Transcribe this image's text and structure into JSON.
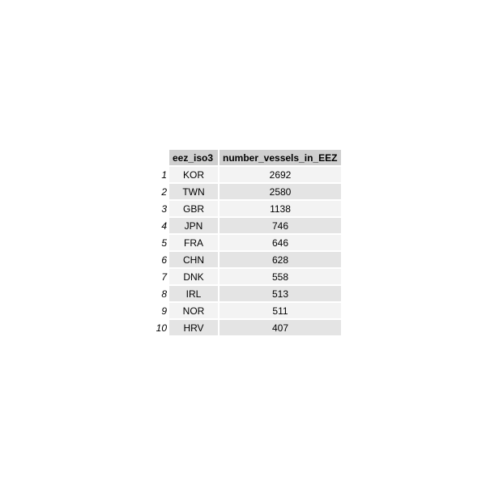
{
  "table": {
    "columns": [
      "eez_iso3",
      "number_vessels_in_EEZ"
    ],
    "rows": [
      {
        "row_number": "1",
        "eez_iso3": "KOR",
        "number_vessels_in_EEZ": "2692"
      },
      {
        "row_number": "2",
        "eez_iso3": "TWN",
        "number_vessels_in_EEZ": "2580"
      },
      {
        "row_number": "3",
        "eez_iso3": "GBR",
        "number_vessels_in_EEZ": "1138"
      },
      {
        "row_number": "4",
        "eez_iso3": "JPN",
        "number_vessels_in_EEZ": "746"
      },
      {
        "row_number": "5",
        "eez_iso3": "FRA",
        "number_vessels_in_EEZ": "646"
      },
      {
        "row_number": "6",
        "eez_iso3": "CHN",
        "number_vessels_in_EEZ": "628"
      },
      {
        "row_number": "7",
        "eez_iso3": "DNK",
        "number_vessels_in_EEZ": "558"
      },
      {
        "row_number": "8",
        "eez_iso3": "IRL",
        "number_vessels_in_EEZ": "513"
      },
      {
        "row_number": "9",
        "eez_iso3": "NOR",
        "number_vessels_in_EEZ": "511"
      },
      {
        "row_number": "10",
        "eez_iso3": "HRV",
        "number_vessels_in_EEZ": "407"
      }
    ]
  },
  "colors": {
    "header_background": "#cfcfcf",
    "row_light": "#f3f3f3",
    "row_dark": "#e4e4e4"
  }
}
